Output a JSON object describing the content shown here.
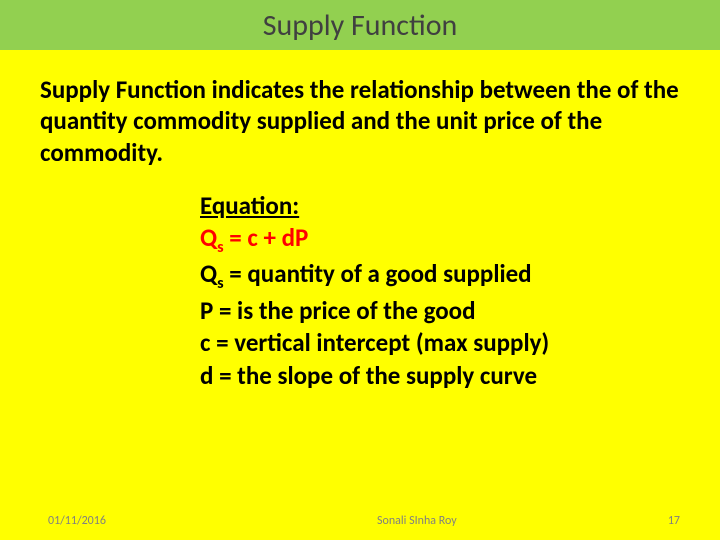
{
  "colors": {
    "background": "#ffff00",
    "title_bar": "#92d050",
    "title_text": "#404040",
    "body_text": "#000000",
    "equation_highlight": "#ff0000",
    "footer_text": "#808080"
  },
  "title": "Supply  Function",
  "body": "Supply Function indicates the relationship between the of the quantity commodity supplied and the unit price of the commodity.",
  "equation": {
    "label": "Equation:",
    "main_pre": "Q",
    "main_sub": "s",
    "main_post": " = c + dP",
    "line_qs_pre": "Q",
    "line_qs_sub": "s",
    "line_qs_post": " = quantity of a good supplied",
    "line_p": "P = is the price of the good",
    "line_c": "c = vertical intercept (max supply)",
    "line_d": "d = the slope of the supply curve"
  },
  "footer": {
    "date": "01/11/2016",
    "author": "Sonali SInha Roy",
    "page": "17"
  },
  "typography": {
    "title_fontsize": 30,
    "body_fontsize": 25,
    "footer_fontsize": 12,
    "body_weight": "bold"
  }
}
